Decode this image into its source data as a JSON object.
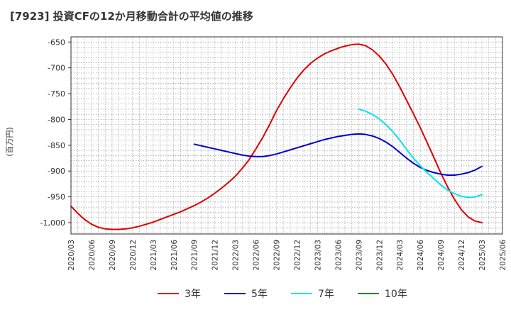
{
  "chart_data": {
    "type": "line",
    "title": "[7923]  投資CFの12か月移動合計の平均値の推移",
    "ylabel": "(百万円)",
    "xlabel": "",
    "ylim": [
      -1022,
      -640
    ],
    "yticks": [
      -650,
      -700,
      -750,
      -800,
      -850,
      -900,
      -950,
      -1000
    ],
    "ytick_labels": [
      "-650",
      "-700",
      "-750",
      "-800",
      "-850",
      "-900",
      "-950",
      "-1,000"
    ],
    "x_start": "2020/03",
    "x_end": "2025/06",
    "xtick_labels": [
      "2020/03",
      "2020/06",
      "2020/09",
      "2020/12",
      "2021/03",
      "2021/06",
      "2021/09",
      "2021/12",
      "2022/03",
      "2022/06",
      "2022/09",
      "2022/12",
      "2023/03",
      "2023/06",
      "2023/09",
      "2023/12",
      "2024/03",
      "2024/06",
      "2024/09",
      "2024/12",
      "2025/03",
      "2025/06"
    ],
    "grid": true,
    "legend_position": "bottom",
    "series": [
      {
        "name": "3年",
        "color": "#e00000",
        "points": [
          [
            "2020/03",
            -968
          ],
          [
            "2020/04",
            -982
          ],
          [
            "2020/05",
            -994
          ],
          [
            "2020/06",
            -1003
          ],
          [
            "2020/07",
            -1009
          ],
          [
            "2020/08",
            -1012
          ],
          [
            "2020/09",
            -1013
          ],
          [
            "2020/10",
            -1013
          ],
          [
            "2020/11",
            -1012
          ],
          [
            "2020/12",
            -1010
          ],
          [
            "2021/01",
            -1007
          ],
          [
            "2021/02",
            -1003
          ],
          [
            "2021/03",
            -999
          ],
          [
            "2021/04",
            -994
          ],
          [
            "2021/05",
            -989
          ],
          [
            "2021/06",
            -984
          ],
          [
            "2021/07",
            -979
          ],
          [
            "2021/08",
            -973
          ],
          [
            "2021/09",
            -967
          ],
          [
            "2021/10",
            -960
          ],
          [
            "2021/11",
            -952
          ],
          [
            "2021/12",
            -943
          ],
          [
            "2022/01",
            -933
          ],
          [
            "2022/02",
            -922
          ],
          [
            "2022/03",
            -910
          ],
          [
            "2022/04",
            -895
          ],
          [
            "2022/05",
            -878
          ],
          [
            "2022/06",
            -857
          ],
          [
            "2022/07",
            -835
          ],
          [
            "2022/08",
            -810
          ],
          [
            "2022/09",
            -783
          ],
          [
            "2022/10",
            -760
          ],
          [
            "2022/11",
            -739
          ],
          [
            "2022/12",
            -720
          ],
          [
            "2023/01",
            -704
          ],
          [
            "2023/02",
            -691
          ],
          [
            "2023/03",
            -681
          ],
          [
            "2023/04",
            -673
          ],
          [
            "2023/05",
            -667
          ],
          [
            "2023/06",
            -662
          ],
          [
            "2023/07",
            -658
          ],
          [
            "2023/08",
            -655
          ],
          [
            "2023/09",
            -654
          ],
          [
            "2023/10",
            -657
          ],
          [
            "2023/11",
            -665
          ],
          [
            "2023/12",
            -677
          ],
          [
            "2024/01",
            -693
          ],
          [
            "2024/02",
            -713
          ],
          [
            "2024/03",
            -737
          ],
          [
            "2024/04",
            -763
          ],
          [
            "2024/05",
            -789
          ],
          [
            "2024/06",
            -816
          ],
          [
            "2024/07",
            -845
          ],
          [
            "2024/08",
            -874
          ],
          [
            "2024/09",
            -904
          ],
          [
            "2024/10",
            -931
          ],
          [
            "2024/11",
            -955
          ],
          [
            "2024/12",
            -975
          ],
          [
            "2025/01",
            -989
          ],
          [
            "2025/02",
            -997
          ],
          [
            "2025/03",
            -1000
          ]
        ]
      },
      {
        "name": "5年",
        "color": "#0000cc",
        "points": [
          [
            "2021/09",
            -848
          ],
          [
            "2021/10",
            -851
          ],
          [
            "2021/11",
            -854
          ],
          [
            "2021/12",
            -857
          ],
          [
            "2022/01",
            -860
          ],
          [
            "2022/02",
            -863
          ],
          [
            "2022/03",
            -866
          ],
          [
            "2022/04",
            -869
          ],
          [
            "2022/05",
            -871
          ],
          [
            "2022/06",
            -872
          ],
          [
            "2022/07",
            -872
          ],
          [
            "2022/08",
            -870
          ],
          [
            "2022/09",
            -867
          ],
          [
            "2022/10",
            -863
          ],
          [
            "2022/11",
            -859
          ],
          [
            "2022/12",
            -855
          ],
          [
            "2023/01",
            -851
          ],
          [
            "2023/02",
            -847
          ],
          [
            "2023/03",
            -843
          ],
          [
            "2023/04",
            -839
          ],
          [
            "2023/05",
            -836
          ],
          [
            "2023/06",
            -833
          ],
          [
            "2023/07",
            -831
          ],
          [
            "2023/08",
            -829
          ],
          [
            "2023/09",
            -828
          ],
          [
            "2023/10",
            -829
          ],
          [
            "2023/11",
            -832
          ],
          [
            "2023/12",
            -837
          ],
          [
            "2024/01",
            -844
          ],
          [
            "2024/02",
            -853
          ],
          [
            "2024/03",
            -864
          ],
          [
            "2024/04",
            -875
          ],
          [
            "2024/05",
            -885
          ],
          [
            "2024/06",
            -893
          ],
          [
            "2024/07",
            -899
          ],
          [
            "2024/08",
            -903
          ],
          [
            "2024/09",
            -906
          ],
          [
            "2024/10",
            -908
          ],
          [
            "2024/11",
            -908
          ],
          [
            "2024/12",
            -906
          ],
          [
            "2025/01",
            -903
          ],
          [
            "2025/02",
            -898
          ],
          [
            "2025/03",
            -891
          ]
        ]
      },
      {
        "name": "7年",
        "color": "#00e5ee",
        "points": [
          [
            "2023/09",
            -780
          ],
          [
            "2023/10",
            -784
          ],
          [
            "2023/11",
            -790
          ],
          [
            "2023/12",
            -799
          ],
          [
            "2024/01",
            -810
          ],
          [
            "2024/02",
            -824
          ],
          [
            "2024/03",
            -840
          ],
          [
            "2024/04",
            -858
          ],
          [
            "2024/05",
            -875
          ],
          [
            "2024/06",
            -890
          ],
          [
            "2024/07",
            -903
          ],
          [
            "2024/08",
            -915
          ],
          [
            "2024/09",
            -927
          ],
          [
            "2024/10",
            -937
          ],
          [
            "2024/11",
            -944
          ],
          [
            "2024/12",
            -949
          ],
          [
            "2025/01",
            -951
          ],
          [
            "2025/02",
            -950
          ],
          [
            "2025/03",
            -946
          ]
        ]
      },
      {
        "name": "10年",
        "color": "#228b22",
        "points": []
      }
    ]
  }
}
